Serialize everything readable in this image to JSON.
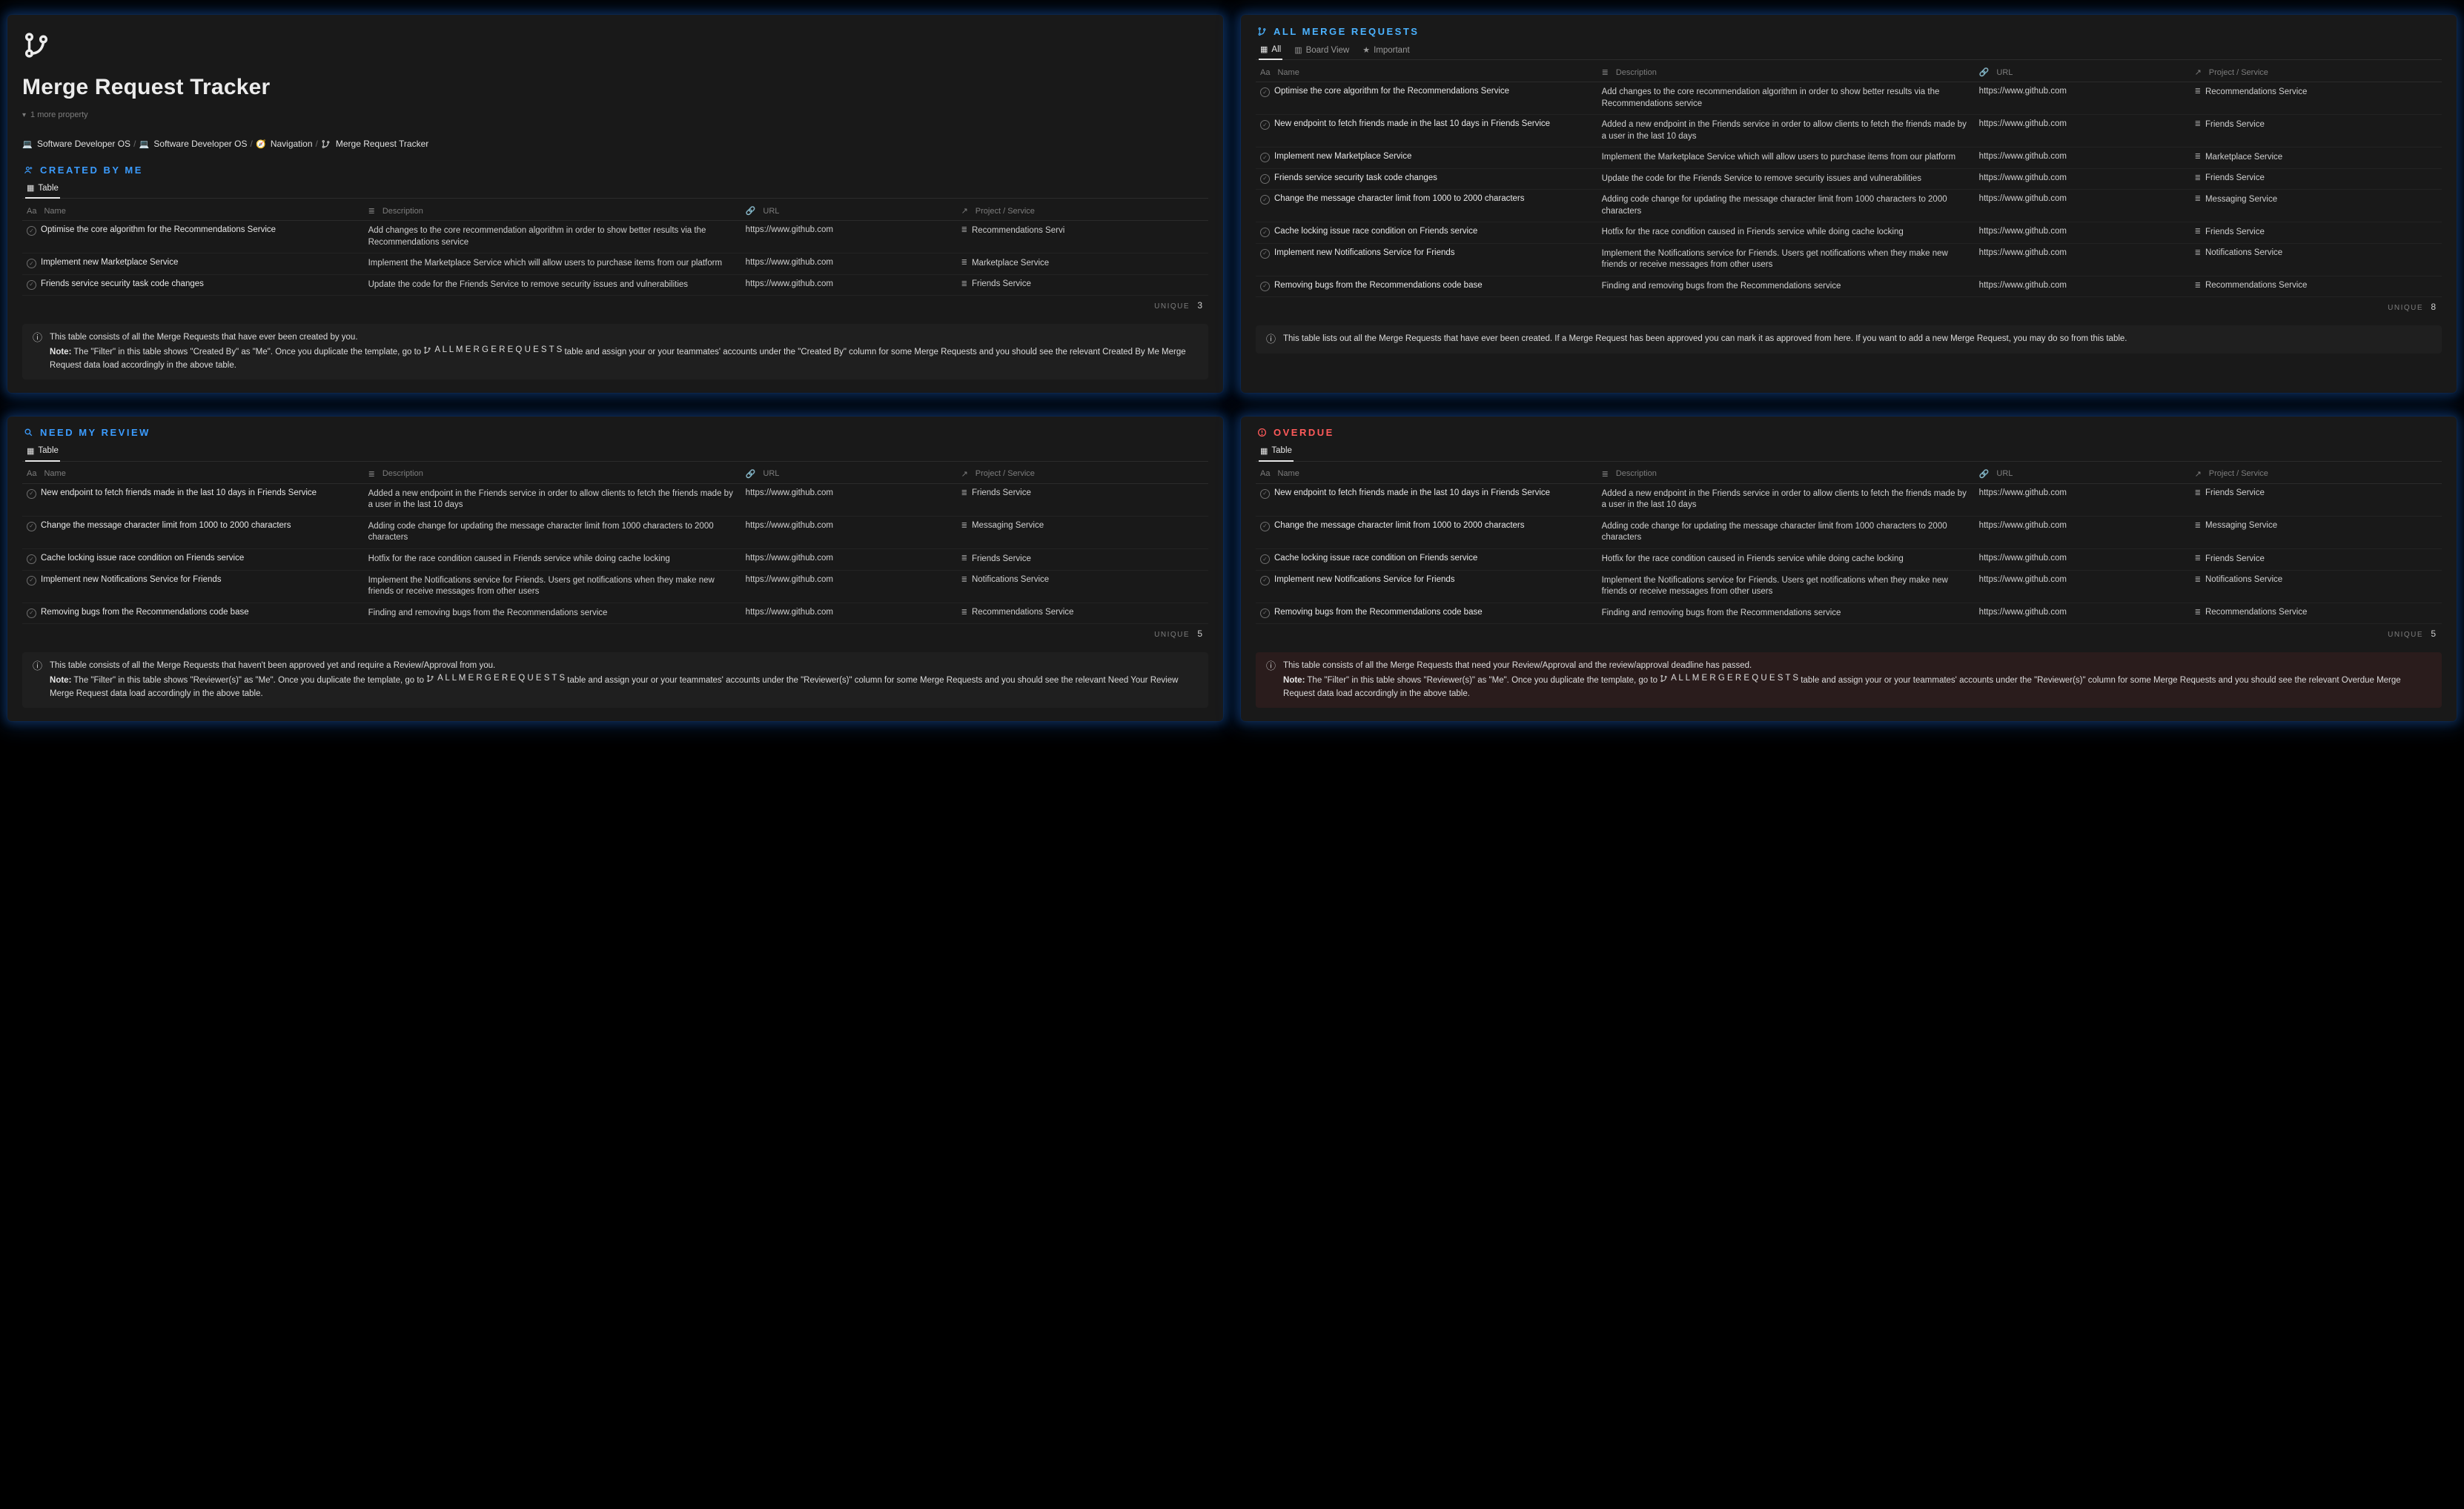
{
  "page": {
    "title": "Merge Request Tracker",
    "more_properties": "1 more property"
  },
  "breadcrumbs": {
    "items": [
      {
        "icon": "laptop",
        "label": "Software Developer OS"
      },
      {
        "icon": "laptop",
        "label": "Software Developer OS"
      },
      {
        "icon": "compass",
        "label": "Navigation"
      },
      {
        "icon": "branch",
        "label": "Merge Request Tracker"
      }
    ]
  },
  "columns": {
    "name": "Name",
    "description": "Description",
    "url": "URL",
    "project": "Project / Service"
  },
  "view_labels": {
    "table": "Table",
    "all": "All",
    "board": "Board View",
    "important": "Important",
    "unique": "UNIQUE"
  },
  "colors": {
    "panel_bg": "#191919",
    "glow": "#2f8fff",
    "text": "#e7e7e7",
    "muted": "#7d7d7d",
    "blue": "#3b9cff",
    "red": "#ff5a5a",
    "info_bg": "#1f1f1f",
    "info_bg_red": "#2a1c1c"
  },
  "sections": {
    "created": {
      "heading": "CREATED BY ME",
      "icon_color": "#3b9cff",
      "views": [
        "table"
      ],
      "count": 3,
      "rows": [
        {
          "name": "Optimise the core algorithm for the Recommendations Service",
          "desc": "Add changes to the core recommendation algorithm in order to show better results via the Recommendations service",
          "url": "https://www.github.com",
          "project": "Recommendations Servi"
        },
        {
          "name": "Implement new Marketplace Service",
          "desc": "Implement the Marketplace Service which will allow users to purchase items from our platform",
          "url": "https://www.github.com",
          "project": "Marketplace Service"
        },
        {
          "name": "Friends service security task code changes",
          "desc": "Update the code for the Friends Service to remove security issues and vulnerabilities",
          "url": "https://www.github.com",
          "project": "Friends Service"
        }
      ],
      "info": {
        "line1": "This table consists of all the Merge Requests that have ever been created by you.",
        "note_label": "Note:",
        "note_body_a": "The \"Filter\" in this table shows \"Created By\" as \"Me\". Once you duplicate the template, go to ",
        "note_link": "A L L   M E R G E   R E Q U E S T S",
        "note_body_b": " table and assign your or your teammates' accounts under the \"Created By\" column for some Merge Requests and you should see the relevant Created By Me Merge Request data load accordingly in the above table."
      }
    },
    "all": {
      "heading": "ALL MERGE REQUESTS",
      "icon_color": "#4bb2ff",
      "views": [
        "all",
        "board",
        "important"
      ],
      "count": 8,
      "rows": [
        {
          "name": "Optimise the core algorithm for the Recommendations Service",
          "desc": "Add changes to the core recommendation algorithm in order to show better results via the Recommendations service",
          "url": "https://www.github.com",
          "project": "Recommendations Service"
        },
        {
          "name": "New endpoint to fetch friends made in the last 10 days in Friends Service",
          "desc": "Added a new endpoint in the Friends service in order to allow clients to fetch the friends made by a user in the last 10 days",
          "url": "https://www.github.com",
          "project": "Friends Service"
        },
        {
          "name": "Implement new Marketplace Service",
          "desc": "Implement the Marketplace Service which will allow users to purchase items from our platform",
          "url": "https://www.github.com",
          "project": "Marketplace Service"
        },
        {
          "name": "Friends service security task code changes",
          "desc": "Update the code for the Friends Service to remove security issues and vulnerabilities",
          "url": "https://www.github.com",
          "project": "Friends Service"
        },
        {
          "name": "Change the message character limit from 1000 to 2000 characters",
          "desc": "Adding code change for updating the message character limit from 1000 characters to 2000 characters",
          "url": "https://www.github.com",
          "project": "Messaging Service"
        },
        {
          "name": "Cache locking issue race condition on Friends service",
          "desc": "Hotfix for the race condition caused in Friends service while doing cache locking",
          "url": "https://www.github.com",
          "project": "Friends Service"
        },
        {
          "name": "Implement new Notifications Service for Friends",
          "desc": "Implement the Notifications service for Friends. Users get notifications when they make new friends or receive messages from other users",
          "url": "https://www.github.com",
          "project": "Notifications Service"
        },
        {
          "name": "Removing bugs from the Recommendations code base",
          "desc": "Finding and removing bugs from the Recommendations service",
          "url": "https://www.github.com",
          "project": "Recommendations Service"
        }
      ],
      "info": {
        "line1": "This table lists out all the Merge Requests that have ever been created. If a Merge Request has been approved you can mark it as approved from here. If you want to add a new Merge Request, you may do so from this table."
      }
    },
    "review": {
      "heading": "NEED MY REVIEW",
      "icon_color": "#3b9cff",
      "views": [
        "table"
      ],
      "count": 5,
      "rows": [
        {
          "name": "New endpoint to fetch friends made in the last 10 days in Friends Service",
          "desc": "Added a new endpoint in the Friends service in order to allow clients to fetch the friends made by a user in the last 10 days",
          "url": "https://www.github.com",
          "project": "Friends Service"
        },
        {
          "name": "Change the message character limit from 1000 to 2000 characters",
          "desc": "Adding code change for updating the message character limit from 1000 characters to 2000 characters",
          "url": "https://www.github.com",
          "project": "Messaging Service"
        },
        {
          "name": "Cache locking issue race condition on Friends service",
          "desc": "Hotfix for the race condition caused in Friends service while doing cache locking",
          "url": "https://www.github.com",
          "project": "Friends Service"
        },
        {
          "name": "Implement new Notifications Service for Friends",
          "desc": "Implement the Notifications service for Friends. Users get notifications when they make new friends or receive messages from other users",
          "url": "https://www.github.com",
          "project": "Notifications Service"
        },
        {
          "name": "Removing bugs from the Recommendations code base",
          "desc": "Finding and removing bugs from the Recommendations service",
          "url": "https://www.github.com",
          "project": "Recommendations Service"
        }
      ],
      "info": {
        "line1": "This table consists of all the Merge Requests that haven't been approved yet and require a Review/Approval from you.",
        "note_label": "Note:",
        "note_body_a": "The \"Filter\" in this table shows \"Reviewer(s)\" as \"Me\". Once you duplicate the template, go to ",
        "note_link": "A L L   M E R G E   R E Q U E S T S",
        "note_body_b": " table and assign your or your teammates' accounts under the \"Reviewer(s)\" column for some Merge Requests and you should see the relevant Need Your Review Merge Request data load accordingly in the above table."
      }
    },
    "overdue": {
      "heading": "OVERDUE",
      "icon_color": "#ff5a5a",
      "views": [
        "table"
      ],
      "count": 5,
      "rows": [
        {
          "name": "New endpoint to fetch friends made in the last 10 days in Friends Service",
          "desc": "Added a new endpoint in the Friends service in order to allow clients to fetch the friends made by a user in the last 10 days",
          "url": "https://www.github.com",
          "project": "Friends Service"
        },
        {
          "name": "Change the message character limit from 1000 to 2000 characters",
          "desc": "Adding code change for updating the message character limit from 1000 characters to 2000 characters",
          "url": "https://www.github.com",
          "project": "Messaging Service"
        },
        {
          "name": "Cache locking issue race condition on Friends service",
          "desc": "Hotfix for the race condition caused in Friends service while doing cache locking",
          "url": "https://www.github.com",
          "project": "Friends Service"
        },
        {
          "name": "Implement new Notifications Service for Friends",
          "desc": "Implement the Notifications service for Friends. Users get notifications when they make new friends or receive messages from other users",
          "url": "https://www.github.com",
          "project": "Notifications Service"
        },
        {
          "name": "Removing bugs from the Recommendations code base",
          "desc": "Finding and removing bugs from the Recommendations service",
          "url": "https://www.github.com",
          "project": "Recommendations Service"
        }
      ],
      "info": {
        "line1": "This table consists of all the Merge Requests that need your Review/Approval and the review/approval deadline has passed.",
        "note_label": "Note:",
        "note_body_a": "The \"Filter\" in this table shows \"Reviewer(s)\" as \"Me\". Once you duplicate the template, go to ",
        "note_link": "A L L   M E R G E   R E Q U E S T S",
        "note_body_b": " table and assign your or your teammates' accounts under the \"Reviewer(s)\" column for some Merge Requests and you should see the relevant Overdue Merge Request data load accordingly in the above table."
      }
    }
  }
}
